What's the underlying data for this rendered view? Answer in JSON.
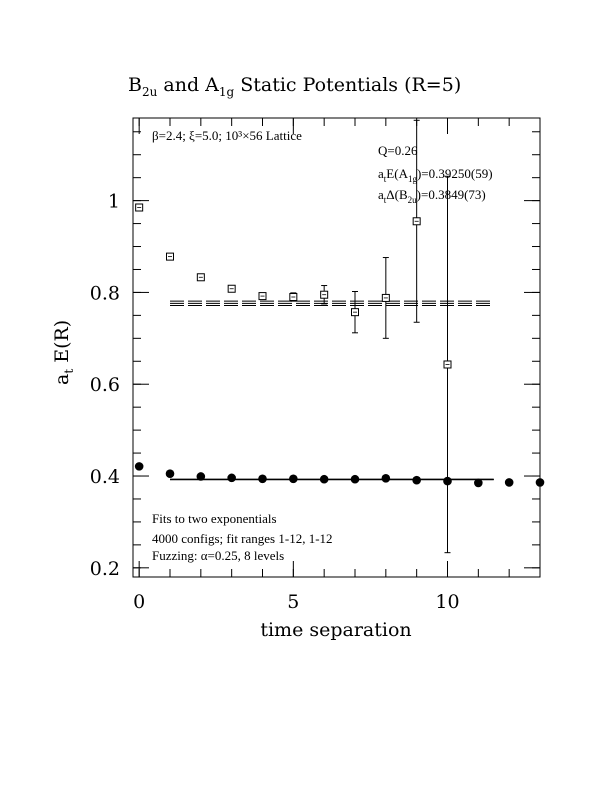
{
  "chart_data": {
    "type": "scatter",
    "title": {
      "pre": "B",
      "sub1": "2u",
      "mid": " and A",
      "sub2": "1g",
      "post": " Static Potentials (R=5)"
    },
    "xlabel": "time separation",
    "ylabel": {
      "a": "a",
      "sub": "t",
      "rest": " E(R)"
    },
    "xlim": [
      -0.2,
      13
    ],
    "ylim": [
      0.18,
      1.18
    ],
    "xticks": [
      0,
      5,
      10
    ],
    "xtick_labels": [
      "0",
      "5",
      "10"
    ],
    "yticks": [
      0.2,
      0.4,
      0.6,
      0.8,
      1.0
    ],
    "ytick_labels": [
      "0.2",
      "0.4",
      "0.6",
      "0.8",
      "1"
    ],
    "x_minor_step": 1,
    "y_minor_step": 0.05,
    "series": [
      {
        "marker": "open-square",
        "points": [
          {
            "x": 0,
            "y": 0.985,
            "err": 0.003
          },
          {
            "x": 1,
            "y": 0.878,
            "err": 0.004
          },
          {
            "x": 2,
            "y": 0.833,
            "err": 0.004
          },
          {
            "x": 3,
            "y": 0.808,
            "err": 0.005
          },
          {
            "x": 4,
            "y": 0.792,
            "err": 0.006
          },
          {
            "x": 5,
            "y": 0.79,
            "err": 0.009
          },
          {
            "x": 6,
            "y": 0.795,
            "err": 0.02
          },
          {
            "x": 7,
            "y": 0.757,
            "err": 0.045
          },
          {
            "x": 8,
            "y": 0.788,
            "err": 0.088
          },
          {
            "x": 9,
            "y": 0.955,
            "err": 0.22
          },
          {
            "x": 10,
            "y": 0.643,
            "err": 0.41
          }
        ],
        "fit": {
          "x_range": [
            1,
            11.5
          ],
          "center": 0.776,
          "band": [
            0.7715,
            0.781
          ]
        }
      },
      {
        "marker": "filled-circle",
        "points": [
          {
            "x": 0,
            "y": 0.421
          },
          {
            "x": 1,
            "y": 0.405
          },
          {
            "x": 2,
            "y": 0.399
          },
          {
            "x": 3,
            "y": 0.396
          },
          {
            "x": 4,
            "y": 0.394
          },
          {
            "x": 5,
            "y": 0.394
          },
          {
            "x": 6,
            "y": 0.393
          },
          {
            "x": 7,
            "y": 0.393
          },
          {
            "x": 8,
            "y": 0.395
          },
          {
            "x": 9,
            "y": 0.391
          },
          {
            "x": 10,
            "y": 0.389
          },
          {
            "x": 11,
            "y": 0.385
          },
          {
            "x": 12,
            "y": 0.386
          },
          {
            "x": 13,
            "y": 0.386
          }
        ],
        "fit": {
          "x_range": [
            1,
            11.5
          ],
          "center": 0.3925,
          "band": [
            0.3919,
            0.3931
          ]
        }
      }
    ],
    "annotations": {
      "lattice": "β=2.4; ξ=5.0; 10³×56 Lattice",
      "q": "Q=0.26",
      "a1g": {
        "pre": "a",
        "sub1": "t",
        "mid": "E(A",
        "sub2": "1g",
        "post": ")=0.39250(59)"
      },
      "b2u": {
        "pre": "a",
        "sub1": "t",
        "mid": "Δ(B",
        "sub2": "2u",
        "post": ")=0.3849(73)"
      },
      "fits": "Fits to two exponentials",
      "configs": "4000 configs; fit ranges 1-12, 1-12",
      "fuzzing": "Fuzzing: α=0.25, 8 levels"
    }
  }
}
